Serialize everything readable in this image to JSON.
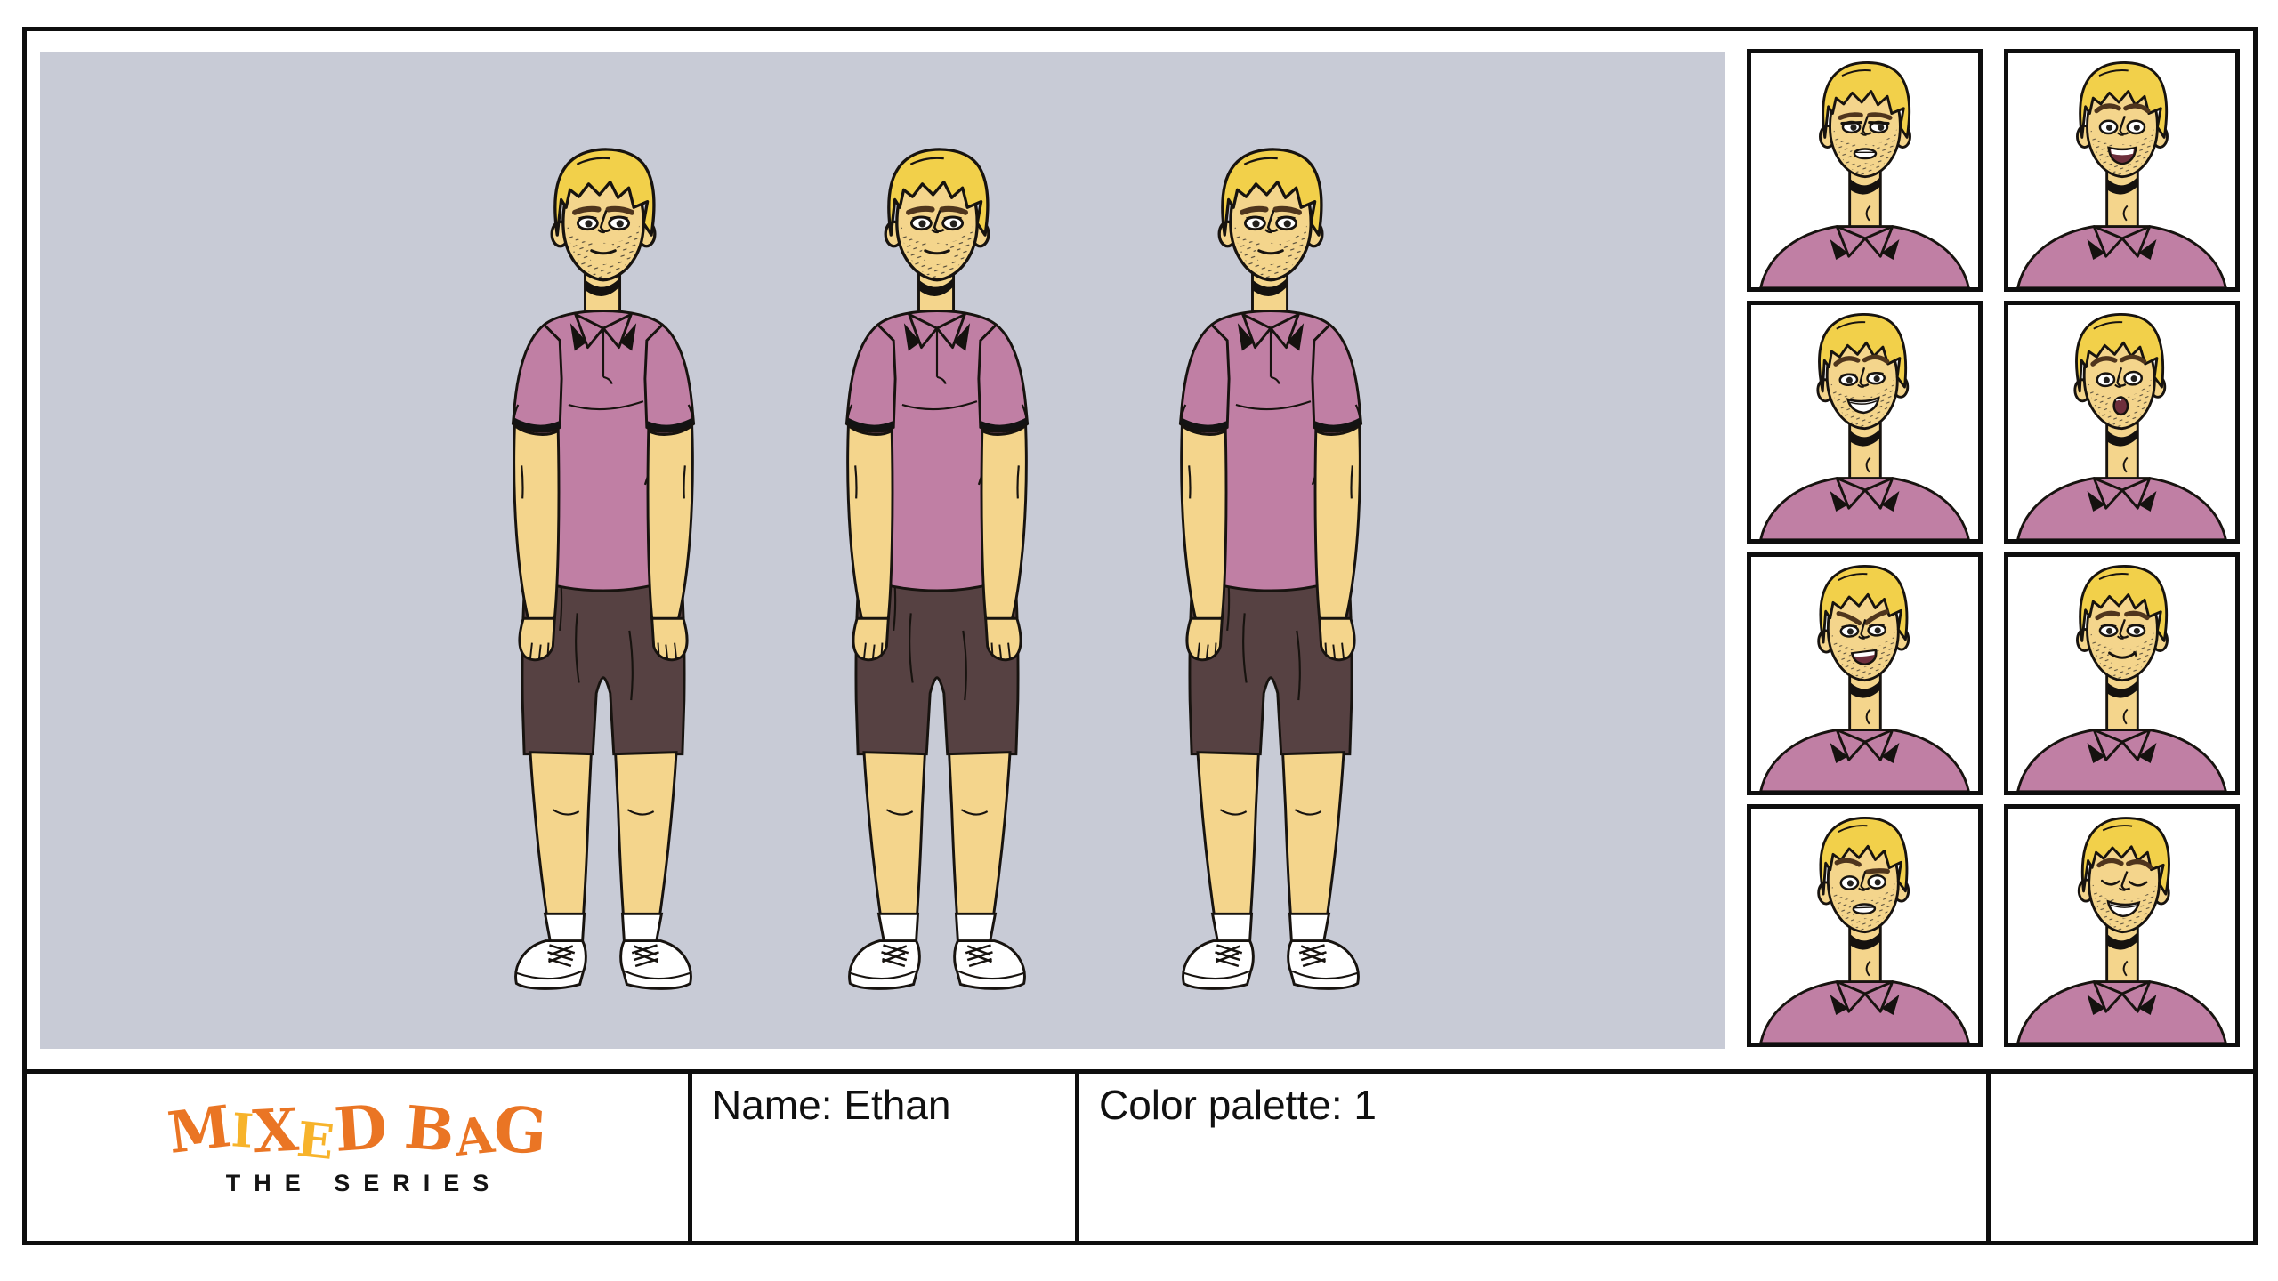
{
  "footer": {
    "logo": {
      "title_letters": [
        {
          "char": "M",
          "color": "#EA7524"
        },
        {
          "char": "I",
          "color": "#F7B32B"
        },
        {
          "char": "X",
          "color": "#EA7524"
        },
        {
          "char": "E",
          "color": "#F7B32B"
        },
        {
          "char": "D",
          "color": "#EA7524"
        },
        {
          "char": " ",
          "color": ""
        },
        {
          "char": "B",
          "color": "#EA7524"
        },
        {
          "char": "A",
          "color": "#EA7524"
        },
        {
          "char": "G",
          "color": "#EA7524"
        }
      ],
      "subtitle": "THE SERIES"
    },
    "name_label": "Name: Ethan",
    "palette_label": "Color palette: 1"
  },
  "character": {
    "name": "Ethan",
    "colors": {
      "background": "#C8CBD6",
      "skin": "#F4D58C",
      "hair": "#F2D04A",
      "shirt": "#C07FA4",
      "shorts": "#564142",
      "outline": "#17130F",
      "brow": "#4F351D",
      "mouth_dark": "#6E2F3C",
      "shoe": "#FFFFFF"
    },
    "full_body_views": [
      {
        "pose": "front"
      },
      {
        "pose": "front"
      },
      {
        "pose": "front"
      }
    ],
    "expressions": [
      {
        "name": "stern",
        "brows": "flat",
        "eyes": "side",
        "mouth": "parted",
        "tilt": 0
      },
      {
        "name": "cheerful-talking",
        "brows": "raised",
        "eyes": "wide",
        "mouth": "open-smile",
        "tilt": 0
      },
      {
        "name": "smiling",
        "brows": "raised",
        "eyes": "open",
        "mouth": "teeth-smile",
        "tilt": -3
      },
      {
        "name": "surprised",
        "brows": "raised",
        "eyes": "wide",
        "mouth": "o",
        "tilt": -3
      },
      {
        "name": "angry-talking",
        "brows": "angry",
        "eyes": "open",
        "mouth": "open-frown",
        "tilt": -2
      },
      {
        "name": "soft-smile",
        "brows": "soft",
        "eyes": "open",
        "mouth": "closed-smile",
        "tilt": 0
      },
      {
        "name": "worried",
        "brows": "worried",
        "eyes": "wide",
        "mouth": "parted",
        "tilt": -2
      },
      {
        "name": "winking",
        "brows": "raised",
        "eyes": "wink",
        "mouth": "teeth-smile",
        "tilt": 2
      }
    ]
  }
}
